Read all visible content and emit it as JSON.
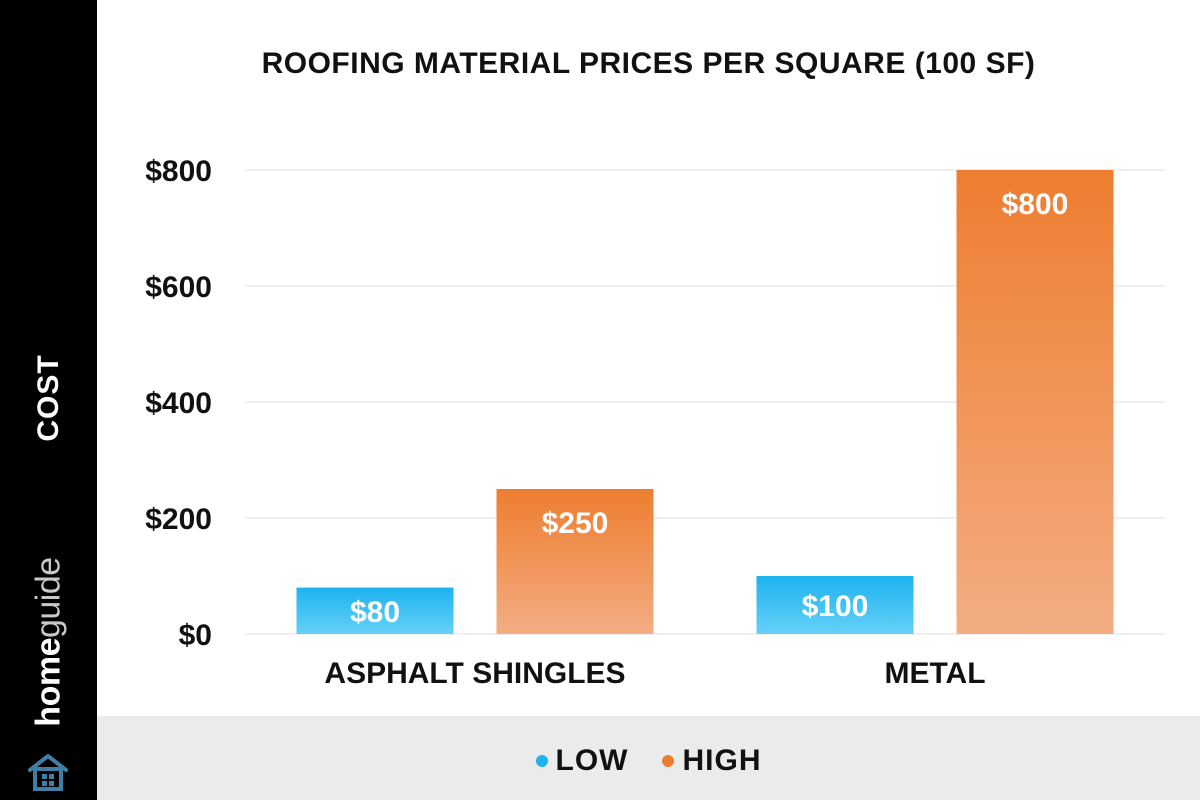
{
  "brand": {
    "home": "home",
    "guide": "guide",
    "logo_icon": "house-icon"
  },
  "colors": {
    "low_top": "#1cb3ef",
    "low_bottom": "#66d0f7",
    "high_top": "#ee7d30",
    "high_bottom": "#f3ad82",
    "grid": "#e2e2e2",
    "text": "#111111"
  },
  "chart_data": {
    "type": "bar",
    "title": "ROOFING MATERIAL PRICES PER SQUARE (100 SF)",
    "ylabel": "COST",
    "xlabel": "",
    "categories": [
      "ASPHALT SHINGLES",
      "METAL"
    ],
    "series": [
      {
        "name": "LOW",
        "values": [
          80,
          100
        ],
        "labels": [
          "$80",
          "$100"
        ]
      },
      {
        "name": "HIGH",
        "values": [
          250,
          800
        ],
        "labels": [
          "$250",
          "$800"
        ]
      }
    ],
    "ylim": [
      0,
      800
    ],
    "yticks": [
      0,
      200,
      400,
      600,
      800
    ],
    "ytick_labels": [
      "$0",
      "$200",
      "$400",
      "$600",
      "$800"
    ],
    "grid": true,
    "legend": "bottom"
  }
}
